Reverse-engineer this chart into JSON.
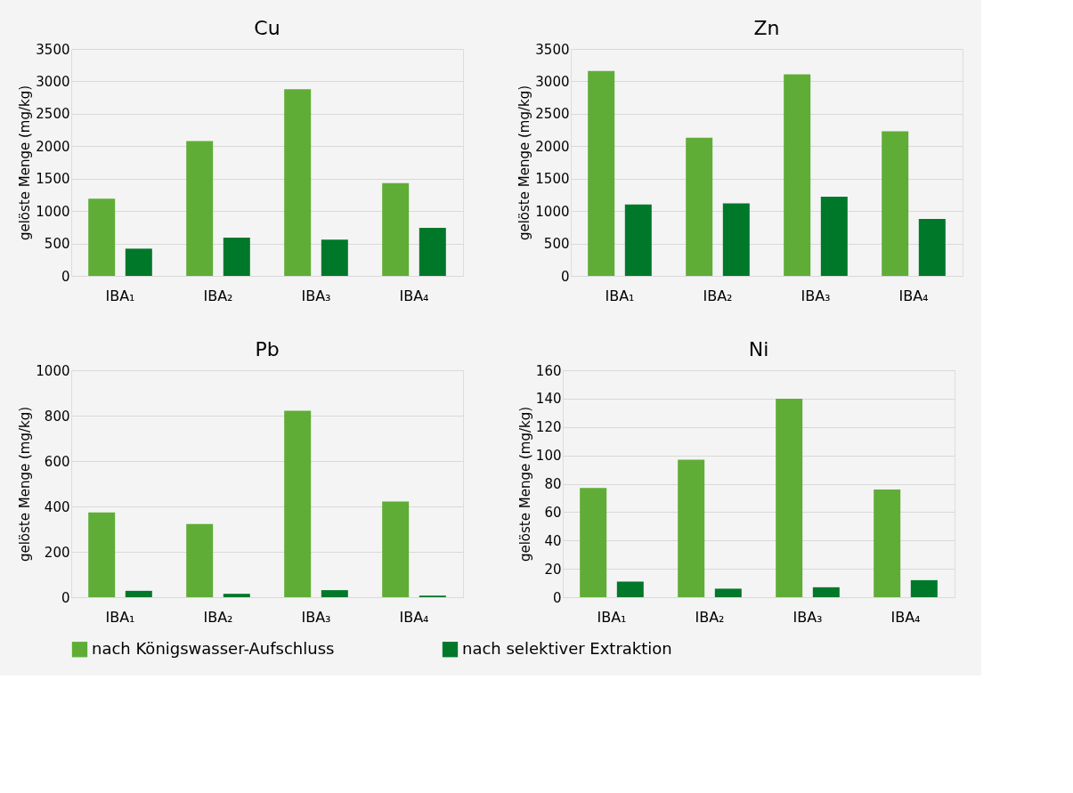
{
  "chart_data": [
    {
      "type": "bar",
      "title": "Cu",
      "ylabel": "gelöste Menge (mg/kg)",
      "categories": [
        "IBA₁",
        "IBA₂",
        "IBA₃",
        "IBA₄"
      ],
      "series": [
        {
          "name": "nach Königswasser-Aufschluss",
          "color": "#5fad36",
          "values": [
            1190,
            2080,
            2880,
            1430
          ]
        },
        {
          "name": "nach selektiver Extraktion",
          "color": "#00782a",
          "values": [
            420,
            590,
            560,
            740
          ]
        }
      ],
      "ylim": [
        0,
        3500
      ],
      "yticks": [
        0,
        500,
        1000,
        1500,
        2000,
        2500,
        3000,
        3500
      ],
      "grid": "y",
      "legend": "bottom"
    },
    {
      "type": "bar",
      "title": "Zn",
      "ylabel": "gelöste Menge (mg/kg)",
      "categories": [
        "IBA₁",
        "IBA₂",
        "IBA₃",
        "IBA₄"
      ],
      "series": [
        {
          "name": "nach Königswasser-Aufschluss",
          "color": "#5fad36",
          "values": [
            3160,
            2130,
            3110,
            2230
          ]
        },
        {
          "name": "nach selektiver Extraktion",
          "color": "#00782a",
          "values": [
            1100,
            1120,
            1220,
            880
          ]
        }
      ],
      "ylim": [
        0,
        3500
      ],
      "yticks": [
        0,
        500,
        1000,
        1500,
        2000,
        2500,
        3000,
        3500
      ],
      "grid": "y",
      "legend": "bottom"
    },
    {
      "type": "bar",
      "title": "Pb",
      "ylabel": "gelöste Menge (mg/kg)",
      "categories": [
        "IBA₁",
        "IBA₂",
        "IBA₃",
        "IBA₄"
      ],
      "series": [
        {
          "name": "nach Königswasser-Aufschluss",
          "color": "#5fad36",
          "values": [
            374,
            323,
            822,
            422
          ]
        },
        {
          "name": "nach selektiver Extraktion",
          "color": "#00782a",
          "values": [
            28,
            15,
            31,
            7
          ]
        }
      ],
      "ylim": [
        0,
        1000
      ],
      "yticks": [
        0,
        200,
        400,
        600,
        800,
        1000
      ],
      "grid": "y",
      "legend": "bottom"
    },
    {
      "type": "bar",
      "title": "Ni",
      "ylabel": "gelöste Menge (mg/kg)",
      "categories": [
        "IBA₁",
        "IBA₂",
        "IBA₃",
        "IBA₄"
      ],
      "series": [
        {
          "name": "nach Königswasser-Aufschluss",
          "color": "#5fad36",
          "values": [
            77,
            97,
            140,
            76
          ]
        },
        {
          "name": "nach selektiver Extraktion",
          "color": "#00782a",
          "values": [
            11,
            6,
            7,
            12
          ]
        }
      ],
      "ylim": [
        0,
        160
      ],
      "yticks": [
        0,
        20,
        40,
        60,
        80,
        100,
        120,
        140,
        160
      ],
      "grid": "y",
      "legend": "bottom"
    }
  ]
}
